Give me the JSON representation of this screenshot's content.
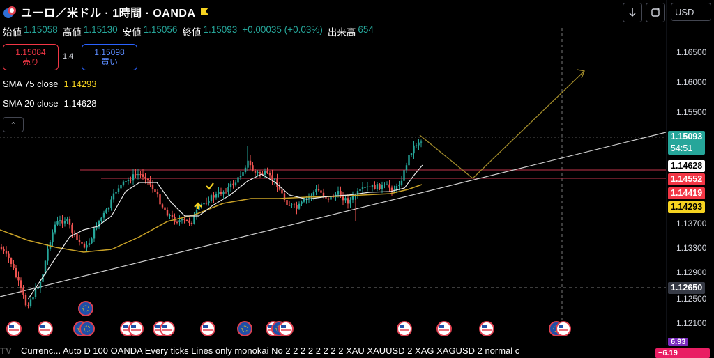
{
  "header": {
    "symbol_title": "ユーロ／米ドル · 1時間 · OANDA",
    "ohlc": [
      {
        "label": "始値",
        "value": "1.15058"
      },
      {
        "label": "高値",
        "value": "1.15130"
      },
      {
        "label": "安値",
        "value": "1.15056"
      },
      {
        "label": "終値",
        "value": "1.15093"
      }
    ],
    "change": "+0.00035 (+0.03%)",
    "volume_label": "出来高",
    "volume_value": "654"
  },
  "trade": {
    "sell_price": "1.15084",
    "sell_label": "売り",
    "spread": "1.4",
    "buy_price": "1.15098",
    "buy_label": "買い"
  },
  "indicators": {
    "sma75_label": "SMA 75 close",
    "sma75_value": "1.14293",
    "sma20_label": "SMA 20 close",
    "sma20_value": "1.14628"
  },
  "toolbar": {
    "currency": "USD",
    "collapse_glyph": "⌃"
  },
  "price_axis": {
    "ticks": [
      "1.16500",
      "1.16000",
      "1.15500",
      "1.13700",
      "1.13300",
      "1.12900",
      "1.12500",
      "1.12100"
    ],
    "labels": [
      {
        "name": "current-price-label",
        "text": "1.15093",
        "sub": "54:51",
        "bg": "#26a69a",
        "fg": "#ffffff"
      },
      {
        "name": "sma20-price-label",
        "text": "1.14628",
        "bg": "#ffffff",
        "fg": "#000000"
      },
      {
        "name": "line1-price-label",
        "text": "1.14552",
        "bg": "#f23645",
        "fg": "#ffffff"
      },
      {
        "name": "line2-price-label",
        "text": "1.14419",
        "bg": "#f23645",
        "fg": "#ffffff"
      },
      {
        "name": "sma75-price-label",
        "text": "1.14293",
        "bg": "#f5d220",
        "fg": "#000000"
      },
      {
        "name": "crosshair-price-label",
        "text": "1.12650",
        "bg": "#363a45",
        "fg": "#ffffff"
      },
      {
        "name": "bottom-price-label",
        "text": "6.93",
        "bg": "#7b2cbf",
        "fg": "#ffffff"
      }
    ],
    "neg_label": "−6.19"
  },
  "bottom_bar": {
    "text": "Currenc...   Auto D 100 OANDA Every ticks Lines only monokai No 2 2 2 2 2 2 2 2 XAU XAUUSD 2 XAG XAGUSD 2 normal c"
  },
  "colors": {
    "up": "#26a69a",
    "down": "#ef5350",
    "sma75": "#c9a227",
    "sma20": "#e8e8e8",
    "hline": "#c2334a",
    "trend": "#d0d0d0",
    "projection": "#a08a2a"
  }
}
